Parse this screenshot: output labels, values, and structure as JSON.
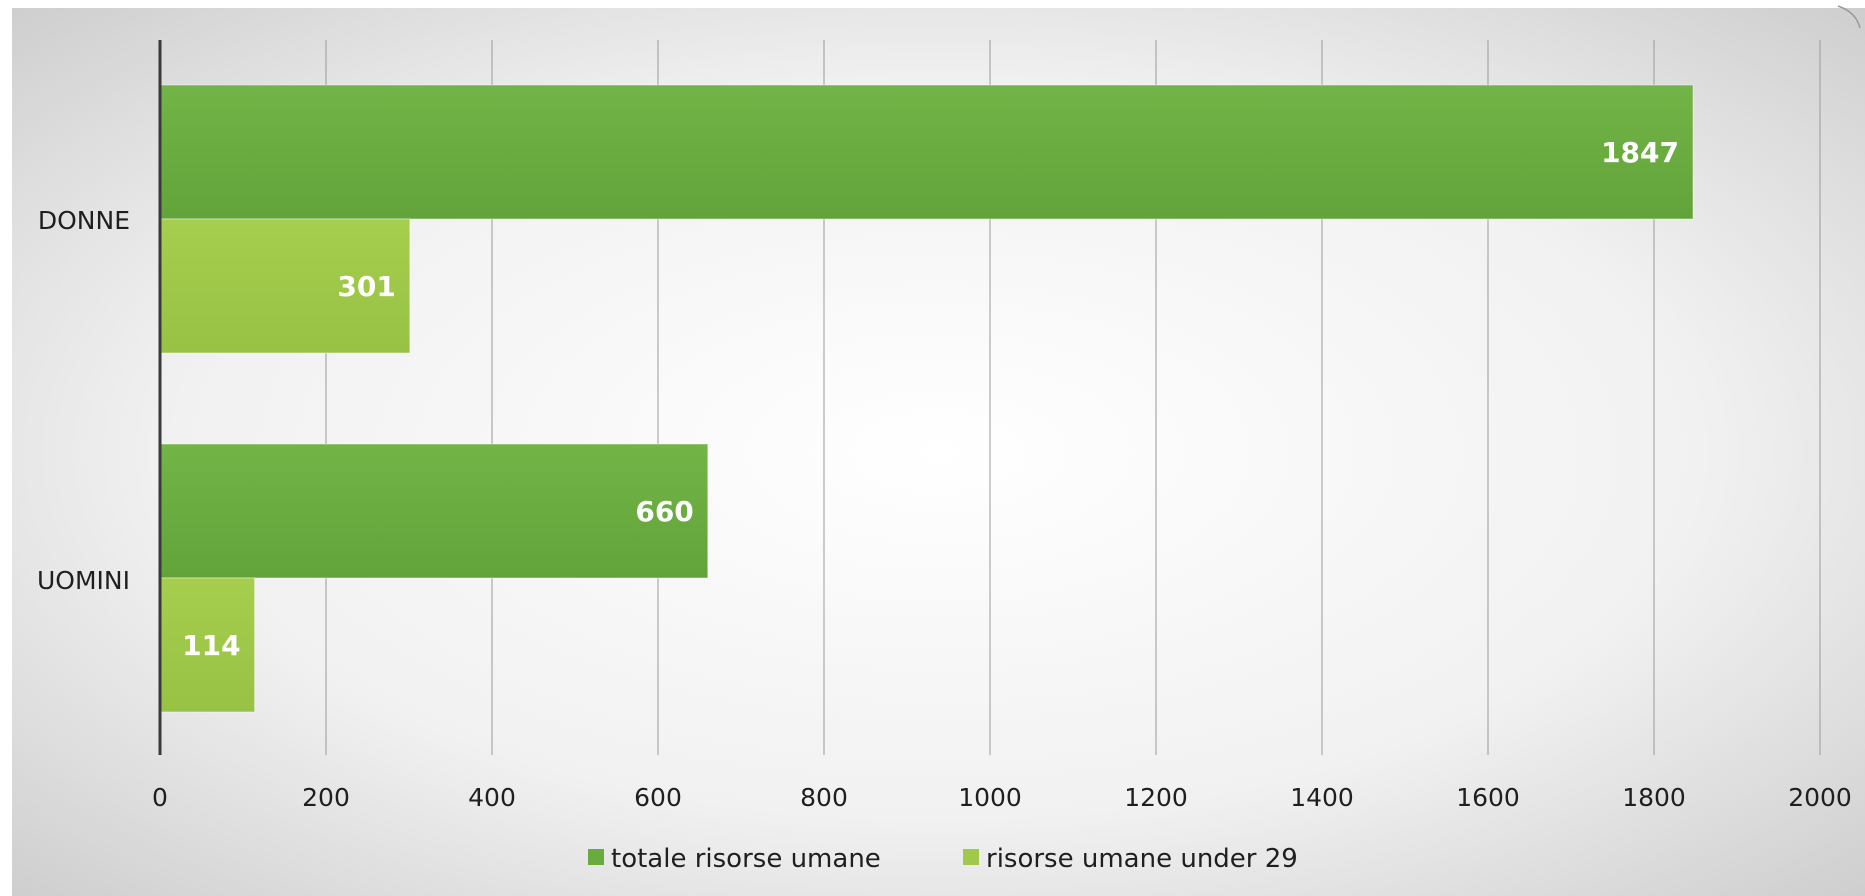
{
  "chart_data": {
    "type": "bar",
    "orientation": "horizontal",
    "categories": [
      "DONNE",
      "UOMINI"
    ],
    "series": [
      {
        "name": "totale risorse umane",
        "values": [
          1847,
          660
        ],
        "color": "#6aab3f"
      },
      {
        "name": "risorse umane under 29",
        "values": [
          301,
          114
        ],
        "color": "#9fc94a"
      }
    ],
    "xlim": [
      0,
      2000
    ],
    "xticks": [
      "0",
      "200",
      "400",
      "600",
      "800",
      "1000",
      "1200",
      "1400",
      "1600",
      "1800",
      "2000"
    ],
    "data_labels": true,
    "grid": true,
    "legend": "bottom",
    "title": "",
    "xlabel": "",
    "ylabel": ""
  }
}
